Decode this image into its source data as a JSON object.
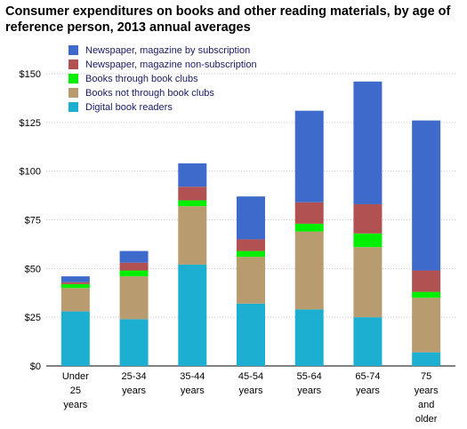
{
  "title_lines": [
    "Consumer expenditures on books and other reading materials, by age of",
    "reference person, 2013 annual averages"
  ],
  "chart_data": {
    "type": "bar",
    "stacked": true,
    "title": "Consumer expenditures on books and other reading materials, by age of reference person, 2013 annual averages",
    "categories": [
      "Under 25 years",
      "25-34 years",
      "35-44 years",
      "45-54 years",
      "55-64 years",
      "65-74 years",
      "75 years and older"
    ],
    "category_label_lines": [
      [
        "Under",
        "25",
        "years"
      ],
      [
        "25-34",
        "years"
      ],
      [
        "35-44",
        "years"
      ],
      [
        "45-54",
        "years"
      ],
      [
        "55-64",
        "years"
      ],
      [
        "65-74",
        "years"
      ],
      [
        "75",
        "years",
        "and",
        "older"
      ]
    ],
    "series": [
      {
        "name": "Digital book readers",
        "color": "#1cafd1",
        "values": [
          28,
          24,
          52,
          32,
          29,
          25,
          7
        ]
      },
      {
        "name": "Books not through book clubs",
        "color": "#b89b6e",
        "values": [
          12,
          22,
          30,
          24,
          40,
          36,
          28
        ]
      },
      {
        "name": "Books through book clubs",
        "color": "#00ee00",
        "values": [
          2,
          3,
          3,
          3,
          4,
          7,
          3
        ]
      },
      {
        "name": "Newspaper, magazine non-subscription",
        "color": "#b15151",
        "values": [
          1,
          4,
          7,
          6,
          11,
          15,
          11
        ]
      },
      {
        "name": "Newspaper, magazine by subscription",
        "color": "#3d6acb",
        "values": [
          3,
          6,
          12,
          22,
          47,
          63,
          77
        ]
      }
    ],
    "legend_order": [
      "Newspaper, magazine by subscription",
      "Newspaper, magazine non-subscription",
      "Books through book clubs",
      "Books not through book clubs",
      "Digital book readers"
    ],
    "yticks": [
      "$0",
      "$25",
      "$50",
      "$75",
      "$100",
      "$125",
      "$150"
    ],
    "ytick_values": [
      0,
      25,
      50,
      75,
      100,
      125,
      150
    ],
    "ylim": [
      0,
      150
    ],
    "grid": true,
    "legend_position": "top-left"
  }
}
